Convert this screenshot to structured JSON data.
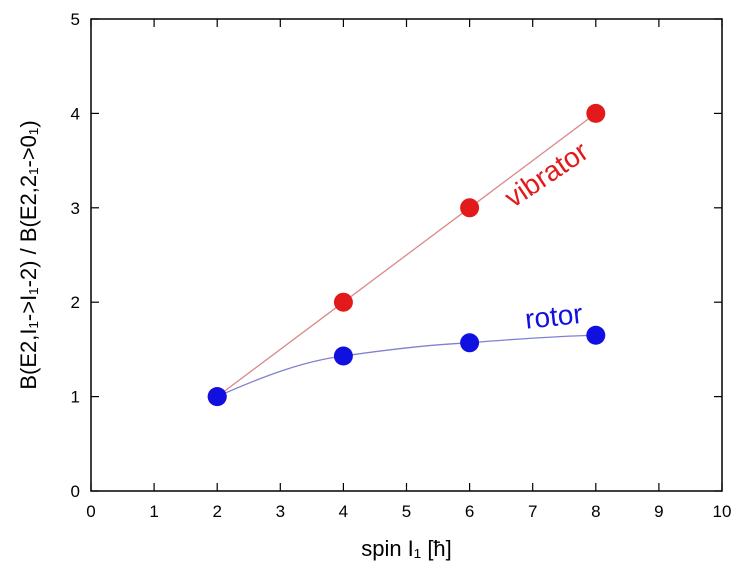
{
  "chart_data": {
    "type": "line",
    "title": "",
    "xlabel": "spin I₁ [ħ]",
    "ylabel": "B(E2,I₁->I₁-2) / B(E2,2₁->0₁)",
    "xlim": [
      0,
      10
    ],
    "ylim": [
      0,
      5
    ],
    "x_ticks": [
      0,
      1,
      2,
      3,
      4,
      5,
      6,
      7,
      8,
      9,
      10
    ],
    "y_ticks": [
      0,
      1,
      2,
      3,
      4,
      5
    ],
    "grid": false,
    "x": [
      2,
      4,
      6,
      8
    ],
    "series": [
      {
        "name": "vibrator",
        "color": "#e31a1c",
        "line_color": "#d98a8a",
        "values": [
          1.0,
          2.0,
          3.0,
          4.0
        ]
      },
      {
        "name": "rotor",
        "color": "#1010e0",
        "line_color": "#8080d0",
        "values": [
          1.0,
          1.43,
          1.57,
          1.65
        ]
      }
    ]
  }
}
